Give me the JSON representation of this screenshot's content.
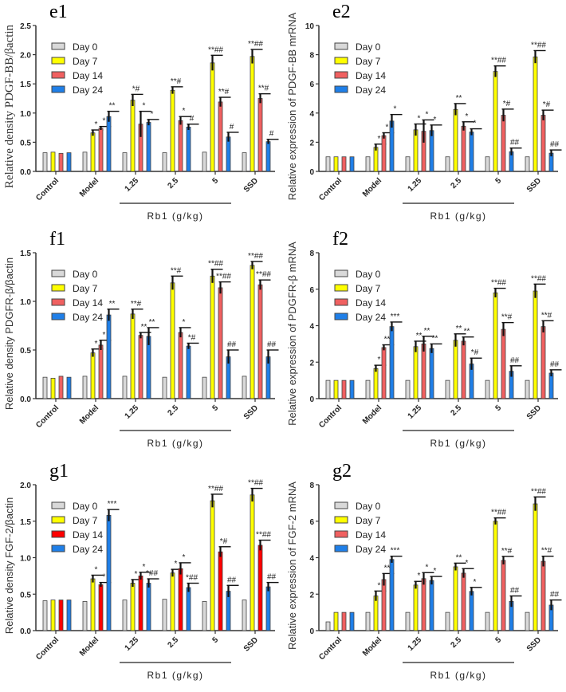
{
  "legend_labels": [
    "Day 0",
    "Day 7",
    "Day 14",
    "Day 24"
  ],
  "group_bracket_label": "Rb1  (g/kg)",
  "chart_data": [
    {
      "panel_label": "e1",
      "type": "bar",
      "ylabel": "Relative density PDGF-BB/βactin",
      "categories": [
        "Control",
        "Model",
        "1.25",
        "2.5",
        "5",
        "SSD"
      ],
      "ylim": [
        0,
        2.5
      ],
      "ytick_step": 0.5,
      "ytick_decimals": 1,
      "ylabel_serif": true,
      "colors": [
        "#d9d9d9",
        "#ffff00",
        "#f06060",
        "#1f7fe8"
      ],
      "series": [
        {
          "name": "Day 0",
          "values": [
            0.32,
            0.33,
            0.32,
            0.32,
            0.33,
            0.32
          ],
          "errors": [
            0,
            0,
            0,
            0,
            0,
            0
          ],
          "annotations": [
            "",
            "",
            "",
            "",
            "",
            ""
          ]
        },
        {
          "name": "Day 7",
          "values": [
            0.33,
            0.66,
            1.22,
            1.39,
            1.86,
            1.97
          ],
          "errors": [
            0,
            0.05,
            0.1,
            0.06,
            0.13,
            0.12
          ],
          "annotations": [
            "",
            "*",
            "*#",
            "**#",
            "**##",
            "**##"
          ]
        },
        {
          "name": "Day 14",
          "values": [
            0.31,
            0.74,
            0.81,
            0.87,
            1.19,
            1.25
          ],
          "errors": [
            0,
            0.03,
            0.22,
            0.07,
            0.08,
            0.08
          ],
          "annotations": [
            "",
            "*",
            "*",
            "*",
            "**#",
            "**#"
          ]
        },
        {
          "name": "Day 24",
          "values": [
            0.32,
            0.94,
            0.84,
            0.76,
            0.59,
            0.51
          ],
          "errors": [
            0,
            0.09,
            0.05,
            0.05,
            0.08,
            0.04
          ],
          "annotations": [
            "",
            "**",
            "*",
            "#",
            "#",
            "#"
          ]
        }
      ]
    },
    {
      "panel_label": "e2",
      "type": "bar",
      "ylabel": "Relative expression of PDGF-BB mrRNA",
      "categories": [
        "Control",
        "Model",
        "1.25",
        "2.5",
        "5",
        "SSD"
      ],
      "ylim": [
        0,
        10
      ],
      "ytick_step": 2,
      "ytick_decimals": 0,
      "colors": [
        "#d9d9d9",
        "#ffff00",
        "#f06060",
        "#1f7fe8"
      ],
      "series": [
        {
          "name": "Day 0",
          "values": [
            1,
            1,
            1,
            1,
            1,
            1
          ],
          "errors": [
            0,
            0,
            0,
            0,
            0,
            0
          ],
          "annotations": [
            "",
            "",
            "",
            "",
            "",
            ""
          ]
        },
        {
          "name": "Day 7",
          "values": [
            1,
            1.65,
            2.85,
            4.25,
            6.85,
            7.85
          ],
          "errors": [
            0,
            0.22,
            0.4,
            0.4,
            0.38,
            0.43
          ],
          "annotations": [
            "",
            "*",
            "*",
            "**",
            "**##",
            "**##"
          ]
        },
        {
          "name": "Day 14",
          "values": [
            1,
            2.45,
            2.75,
            3.1,
            3.85,
            3.85
          ],
          "errors": [
            0,
            0.2,
            0.78,
            0.3,
            0.42,
            0.35
          ],
          "annotations": [
            "",
            "*",
            "*",
            "*",
            "*#",
            "*#"
          ]
        },
        {
          "name": "Day 24",
          "values": [
            1,
            3.45,
            2.8,
            2.7,
            1.35,
            1.25
          ],
          "errors": [
            0,
            0.45,
            0.38,
            0.22,
            0.25,
            0.22
          ],
          "annotations": [
            "",
            "*",
            "*",
            "*",
            "##",
            "##"
          ]
        }
      ]
    },
    {
      "panel_label": "f1",
      "type": "bar",
      "ylabel": "Relative density   PDGFR-β/βactin",
      "categories": [
        "Control",
        "Model",
        "1.25",
        "2.5",
        "5",
        "SSD"
      ],
      "ylim": [
        0,
        1.5
      ],
      "ytick_step": 0.5,
      "ytick_decimals": 1,
      "colors": [
        "#d9d9d9",
        "#ffff00",
        "#f06060",
        "#1f7fe8"
      ],
      "series": [
        {
          "name": "Day 0",
          "values": [
            0.22,
            0.23,
            0.23,
            0.22,
            0.22,
            0.23
          ],
          "errors": [
            0,
            0,
            0,
            0,
            0,
            0
          ],
          "annotations": [
            "",
            "",
            "",
            "",
            "",
            ""
          ]
        },
        {
          "name": "Day 7",
          "values": [
            0.21,
            0.47,
            0.87,
            1.19,
            1.26,
            1.37
          ],
          "errors": [
            0,
            0.04,
            0.05,
            0.07,
            0.07,
            0.04
          ],
          "annotations": [
            "",
            "*",
            "**#",
            "**#",
            "**##",
            "**##"
          ]
        },
        {
          "name": "Day 14",
          "values": [
            0.23,
            0.55,
            0.65,
            0.68,
            1.14,
            1.17
          ],
          "errors": [
            0,
            0.05,
            0.03,
            0.05,
            0.06,
            0.05
          ],
          "annotations": [
            "",
            "*",
            "**",
            "*",
            "**##",
            "**##"
          ]
        },
        {
          "name": "Day 24",
          "values": [
            0.22,
            0.86,
            0.64,
            0.54,
            0.43,
            0.43
          ],
          "errors": [
            0,
            0.06,
            0.09,
            0.03,
            0.07,
            0.07
          ],
          "annotations": [
            "",
            "**",
            "**",
            "*#",
            "##",
            "##"
          ]
        }
      ]
    },
    {
      "panel_label": "f2",
      "type": "bar",
      "ylabel": "Relative expression of PDGFR-β mRNA",
      "categories": [
        "Control",
        "Model",
        "1.25",
        "2.5",
        "5",
        "SSD"
      ],
      "ylim": [
        0,
        8
      ],
      "ytick_step": 2,
      "ytick_decimals": 0,
      "colors": [
        "#d9d9d9",
        "#ffff00",
        "#f06060",
        "#1f7fe8"
      ],
      "series": [
        {
          "name": "Day 0",
          "values": [
            1,
            1,
            1,
            1,
            1,
            1
          ],
          "errors": [
            0,
            0,
            0,
            0,
            0,
            0
          ],
          "annotations": [
            "",
            "",
            "",
            "",
            "",
            ""
          ]
        },
        {
          "name": "Day 7",
          "values": [
            1,
            1.65,
            2.85,
            3.2,
            5.8,
            5.9
          ],
          "errors": [
            0,
            0.18,
            0.3,
            0.35,
            0.25,
            0.38
          ],
          "annotations": [
            "",
            "*",
            "**",
            "**",
            "**##",
            "**##"
          ]
        },
        {
          "name": "Day 14",
          "values": [
            1,
            2.8,
            3.0,
            3.15,
            3.8,
            3.95
          ],
          "errors": [
            0,
            0.15,
            0.42,
            0.23,
            0.37,
            0.32
          ],
          "annotations": [
            "",
            "**",
            "**",
            "**",
            "**#",
            "**#"
          ]
        },
        {
          "name": "Day 24",
          "values": [
            1,
            3.95,
            2.75,
            1.9,
            1.5,
            1.4
          ],
          "errors": [
            0,
            0.25,
            0.25,
            0.32,
            0.3,
            0.18
          ],
          "annotations": [
            "",
            "***",
            "**",
            "*#",
            "##",
            "##"
          ]
        }
      ]
    },
    {
      "panel_label": "g1",
      "type": "bar",
      "ylabel": "Relative density  FGF-2/βactin",
      "categories": [
        "Control",
        "Model",
        "1.25",
        "2.5",
        "5",
        "SSD"
      ],
      "ylim": [
        0,
        2.0
      ],
      "ytick_step": 0.5,
      "ytick_decimals": 1,
      "colors": [
        "#d9d9d9",
        "#ffff00",
        "#ff0000",
        "#1f7fe8"
      ],
      "series": [
        {
          "name": "Day 0",
          "values": [
            0.41,
            0.4,
            0.42,
            0.43,
            0.4,
            0.42
          ],
          "errors": [
            0,
            0,
            0,
            0,
            0,
            0
          ],
          "annotations": [
            "",
            "",
            "",
            "",
            "",
            ""
          ]
        },
        {
          "name": "Day 7",
          "values": [
            0.42,
            0.71,
            0.65,
            0.79,
            1.78,
            1.86
          ],
          "errors": [
            0,
            0.05,
            0.05,
            0.05,
            0.09,
            0.09
          ],
          "annotations": [
            "",
            "*",
            "*",
            "*",
            "**##",
            "**##"
          ]
        },
        {
          "name": "Day 14",
          "values": [
            0.42,
            0.63,
            0.75,
            0.85,
            1.08,
            1.17
          ],
          "errors": [
            0,
            0.03,
            0.05,
            0.08,
            0.07,
            0.07
          ],
          "annotations": [
            "",
            "*",
            "*",
            "*",
            "*#",
            "**##"
          ]
        },
        {
          "name": "Day 24",
          "values": [
            0.42,
            1.58,
            0.65,
            0.59,
            0.54,
            0.6
          ],
          "errors": [
            0,
            0.08,
            0.06,
            0.06,
            0.08,
            0.06
          ],
          "annotations": [
            "",
            "***",
            "*##",
            "*##",
            "##",
            "##"
          ]
        }
      ]
    },
    {
      "panel_label": "g2",
      "type": "bar",
      "ylabel": "Relative expression of FGF-2  mRNA",
      "categories": [
        "Control",
        "Model",
        "1.25",
        "2.5",
        "5",
        "SSD"
      ],
      "ylim": [
        0,
        8
      ],
      "ytick_step": 2,
      "ytick_decimals": 0,
      "colors": [
        "#d9d9d9",
        "#ffff00",
        "#f06060",
        "#1f7fe8"
      ],
      "series": [
        {
          "name": "Day 0",
          "values": [
            0.48,
            1,
            1,
            1,
            1,
            1
          ],
          "errors": [
            0,
            0,
            0,
            0,
            0,
            0
          ],
          "annotations": [
            "",
            "",
            "",
            "",
            "",
            ""
          ]
        },
        {
          "name": "Day 7",
          "values": [
            1,
            1.9,
            2.5,
            3.5,
            6,
            6.95
          ],
          "errors": [
            0,
            0.27,
            0.2,
            0.2,
            0.18,
            0.38
          ],
          "annotations": [
            "",
            "*",
            "*",
            "**",
            "**##",
            "**##"
          ]
        },
        {
          "name": "Day 14",
          "values": [
            1,
            2.8,
            2.85,
            3.15,
            3.85,
            3.8
          ],
          "errors": [
            0,
            0.33,
            0.33,
            0.25,
            0.22,
            0.28
          ],
          "annotations": [
            "",
            "**",
            "*",
            "*",
            "**#",
            "**#"
          ]
        },
        {
          "name": "Day 24",
          "values": [
            1,
            3.9,
            2.75,
            2.15,
            1.6,
            1.4
          ],
          "errors": [
            0,
            0.18,
            0.22,
            0.22,
            0.3,
            0.28
          ],
          "annotations": [
            "",
            "***",
            "*",
            "*",
            "##",
            "##"
          ]
        }
      ]
    }
  ]
}
